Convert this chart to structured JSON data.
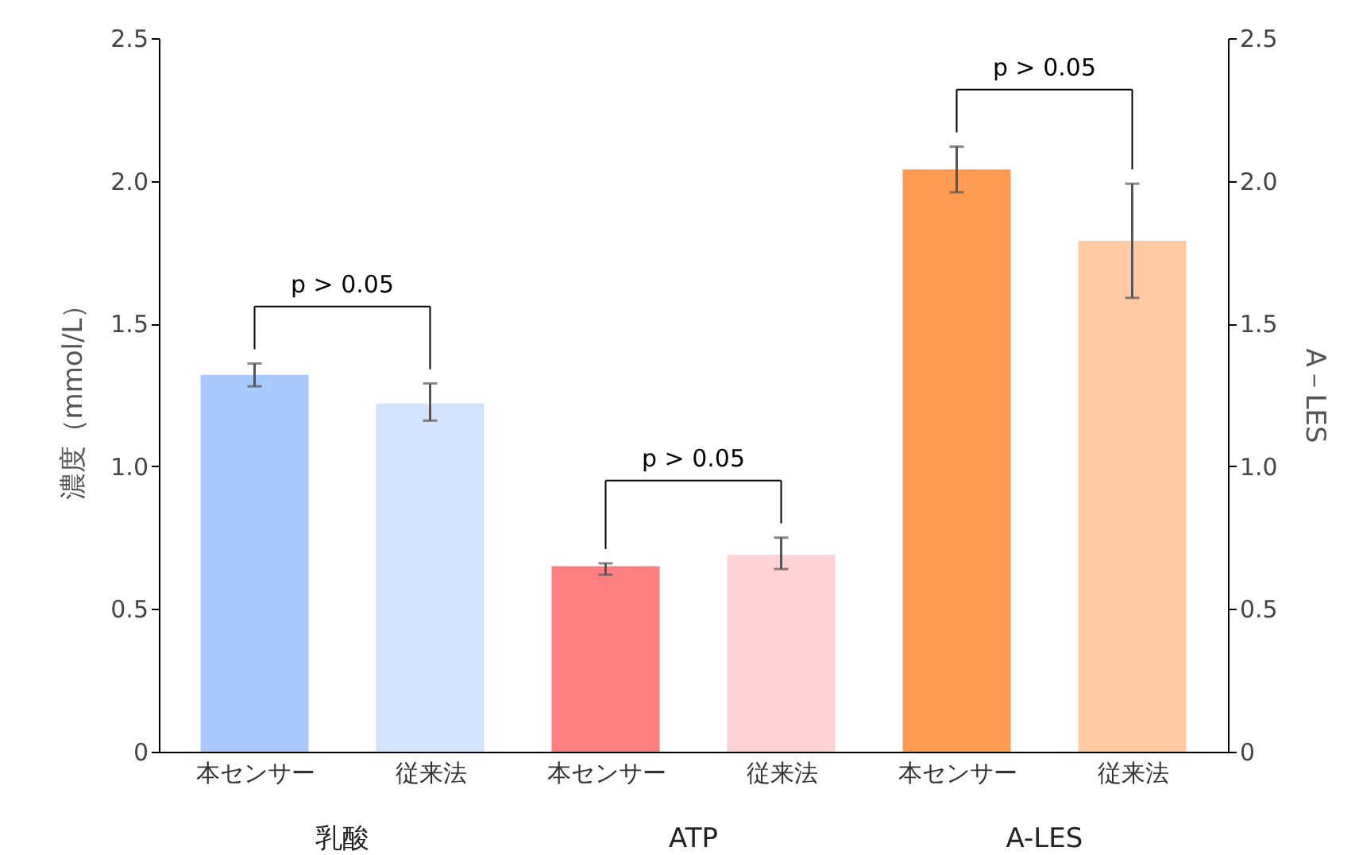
{
  "chart_data": {
    "type": "bar",
    "categories": [
      "本センサー",
      "従来法",
      "本センサー",
      "従来法",
      "本センサー",
      "従来法"
    ],
    "values": [
      1.32,
      1.22,
      0.65,
      0.69,
      2.04,
      1.79
    ],
    "errors": [
      [
        1.28,
        1.36
      ],
      [
        1.16,
        1.29
      ],
      [
        0.62,
        0.66
      ],
      [
        0.64,
        0.75
      ],
      [
        1.96,
        2.12
      ],
      [
        1.59,
        1.99
      ]
    ],
    "colors": [
      "#a9c8fb",
      "#d3e3fd",
      "#fe7f7f",
      "#ffd2d6",
      "#ff9a52",
      "#ffcaa4"
    ],
    "ylabel": "濃度（mmol/L）",
    "y2label": "A－LES",
    "ylim": [
      0,
      2.5
    ],
    "yticks": [
      0,
      0.5,
      {
        "value": 1,
        "label": "1.0"
      },
      1.5,
      {
        "value": 2,
        "label": "2.0"
      },
      2.5
    ],
    "y2lim": [
      0,
      2.5
    ],
    "y2ticks": [
      0,
      0.5,
      {
        "value": 1,
        "label": "1.0"
      },
      1.5,
      {
        "value": 2,
        "label": "2.0"
      },
      2.5
    ],
    "annotations": [
      "乳酸",
      "ATP",
      "A-LES",
      "p > 0.05",
      "p > 0.05",
      "p > 0.05"
    ],
    "grid": false
  }
}
